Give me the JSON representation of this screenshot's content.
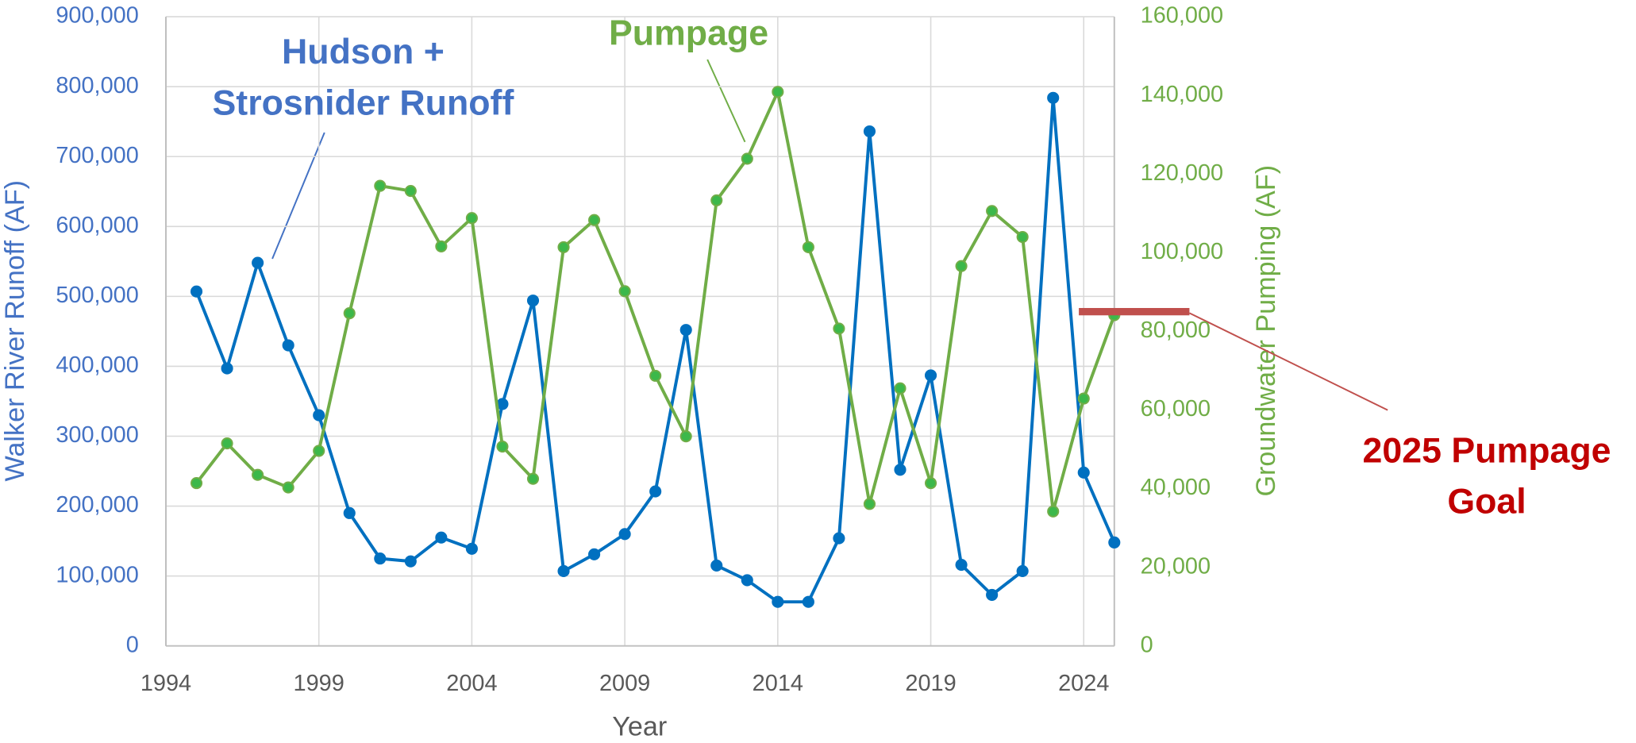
{
  "chart_data": {
    "type": "line",
    "x_label": "Year",
    "y_label": "Walker River Runoff (AF)",
    "y2_label": "Groundwater Pumping (AF)",
    "x": [
      1995,
      1996,
      1997,
      1998,
      1999,
      2000,
      2001,
      2002,
      2003,
      2004,
      2005,
      2006,
      2007,
      2008,
      2009,
      2010,
      2011,
      2012,
      2013,
      2014,
      2015,
      2016,
      2017,
      2018,
      2019,
      2020,
      2021,
      2022,
      2023,
      2024,
      2025
    ],
    "series": [
      {
        "label_lines": [
          "Hudson +",
          "Strosnider Runoff"
        ],
        "color": "#0070c0",
        "label_color": "#4472c4",
        "axis": "y",
        "values": [
          507000,
          397000,
          548000,
          430000,
          330000,
          190000,
          125000,
          121000,
          155000,
          139000,
          346000,
          494000,
          107000,
          131000,
          160000,
          221000,
          452000,
          115000,
          94000,
          63000,
          63000,
          154000,
          736000,
          252000,
          387000,
          116000,
          73000,
          107000,
          784000,
          248000,
          148000
        ]
      },
      {
        "label_lines": [
          "Pumpage"
        ],
        "color": "#70ad47",
        "marker_color": "#3cb84a",
        "label_color": "#70ad47",
        "axis": "y2",
        "values": [
          41400,
          51500,
          43500,
          40300,
          49600,
          84600,
          117000,
          115700,
          101600,
          108800,
          50700,
          42500,
          101400,
          108300,
          90200,
          68700,
          53300,
          113300,
          123900,
          140900,
          101400,
          80700,
          36100,
          65500,
          41400,
          96600,
          110600,
          104000,
          34200,
          62900,
          84100
        ]
      }
    ],
    "goal": {
      "value": 85000,
      "axis": "y2",
      "color": "#c0504d",
      "label_lines": [
        "2025 Pumpage",
        "Goal"
      ],
      "label_color": "#c00000"
    },
    "xlim": [
      1994,
      2025
    ],
    "xticks": [
      1994,
      1999,
      2004,
      2009,
      2014,
      2019,
      2024
    ],
    "ylim": [
      0,
      900000
    ],
    "yticks": [
      0,
      {
        "value": 100000,
        "label": "100,000"
      },
      {
        "value": 200000,
        "label": "200,000"
      },
      {
        "value": 300000,
        "label": "300,000"
      },
      {
        "value": 400000,
        "label": "400,000"
      },
      {
        "value": 500000,
        "label": "500,000"
      },
      {
        "value": 600000,
        "label": "600,000"
      },
      {
        "value": 700000,
        "label": "700,000"
      },
      {
        "value": 800000,
        "label": "800,000"
      },
      {
        "value": 900000,
        "label": "900,000"
      }
    ],
    "y2lim": [
      0,
      160000
    ],
    "y2ticks": [
      0,
      {
        "value": 20000,
        "label": "20,000"
      },
      {
        "value": 40000,
        "label": "40,000"
      },
      {
        "value": 60000,
        "label": "60,000"
      },
      {
        "value": 80000,
        "label": "80,000"
      },
      {
        "value": 100000,
        "label": "100,000"
      },
      {
        "value": 120000,
        "label": "120,000"
      },
      {
        "value": 140000,
        "label": "140,000"
      },
      {
        "value": 160000,
        "label": "160,000"
      }
    ],
    "grid": true
  }
}
